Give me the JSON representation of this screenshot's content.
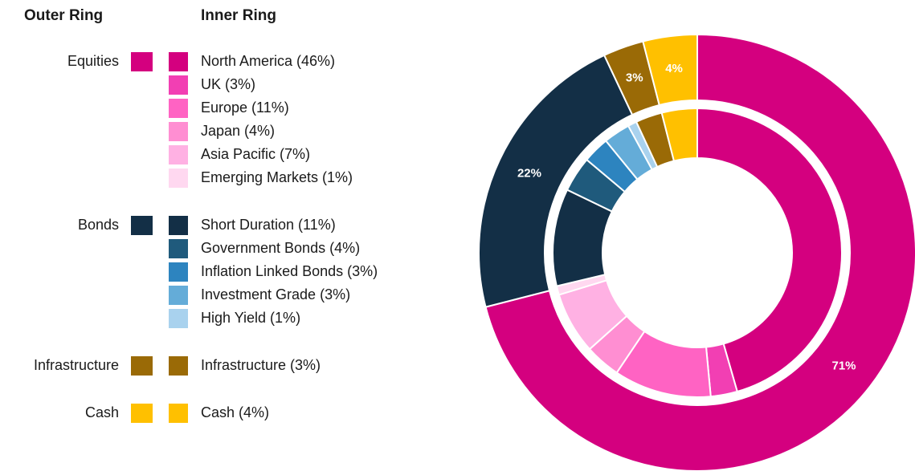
{
  "chart_data": {
    "type": "nested-donut",
    "outer_title": "Outer Ring",
    "inner_title": "Inner Ring",
    "groups": [
      {
        "name": "Equities",
        "value": 71,
        "value_label": "71%",
        "color": "#d4007f",
        "items": [
          {
            "name": "North America (46%)",
            "value": 46,
            "color": "#d4007f"
          },
          {
            "name": "UK (3%)",
            "value": 3,
            "color": "#f23fb3"
          },
          {
            "name": "Europe (11%)",
            "value": 11,
            "color": "#ff63c3"
          },
          {
            "name": "Japan (4%)",
            "value": 4,
            "color": "#ff8ed2"
          },
          {
            "name": "Asia Pacific (7%)",
            "value": 7,
            "color": "#ffb1e3"
          },
          {
            "name": "Emerging Markets (1%)",
            "value": 1,
            "color": "#ffd8f0"
          }
        ]
      },
      {
        "name": "Bonds",
        "value": 22,
        "value_label": "22%",
        "color": "#132f46",
        "items": [
          {
            "name": "Short Duration (11%)",
            "value": 11,
            "color": "#132f46"
          },
          {
            "name": "Government Bonds (4%)",
            "value": 4,
            "color": "#1f5a7c"
          },
          {
            "name": "Inflation Linked Bonds (3%)",
            "value": 3,
            "color": "#2d84bf"
          },
          {
            "name": "Investment Grade (3%)",
            "value": 3,
            "color": "#64acd8"
          },
          {
            "name": "High Yield (1%)",
            "value": 1,
            "color": "#a9d2ee"
          }
        ]
      },
      {
        "name": "Infrastructure",
        "value": 3,
        "value_label": "3%",
        "color": "#9a6a06",
        "items": [
          {
            "name": "Infrastructure (3%)",
            "value": 3,
            "color": "#9a6a06"
          }
        ]
      },
      {
        "name": "Cash",
        "value": 4,
        "value_label": "4%",
        "color": "#ffc000",
        "items": [
          {
            "name": "Cash (4%)",
            "value": 4,
            "color": "#ffc000"
          }
        ]
      }
    ]
  }
}
